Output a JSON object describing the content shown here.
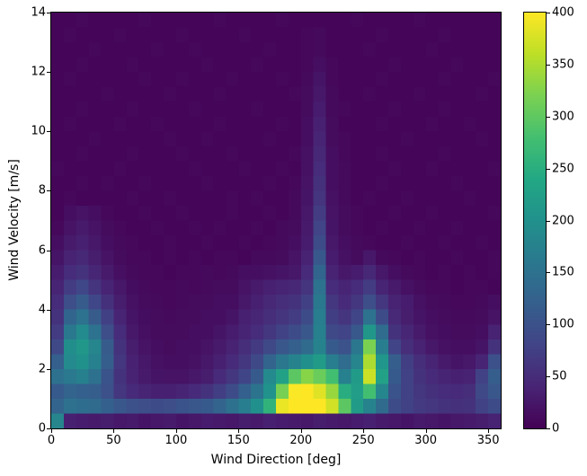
{
  "chart_data": {
    "type": "heatmap",
    "title": "",
    "xlabel": "Wind Direction [deg]",
    "ylabel": "Wind Velocity [m/s]",
    "xlim": [
      0,
      360
    ],
    "ylim": [
      0,
      14
    ],
    "x_ticks": [
      0,
      50,
      100,
      150,
      200,
      250,
      300,
      350
    ],
    "y_ticks": [
      0,
      2,
      4,
      6,
      8,
      10,
      12,
      14
    ],
    "x_bin_size_deg": 10,
    "y_bin_size_ms": 0.5,
    "grid": false,
    "colorbar": {
      "min": 0,
      "max": 400,
      "ticks": [
        0,
        50,
        100,
        150,
        200,
        250,
        300,
        350,
        400
      ],
      "position": "right"
    },
    "colormap": {
      "name": "viridis",
      "stops": [
        {
          "t": 0.0,
          "color": "#440154"
        },
        {
          "t": 0.1,
          "color": "#482475"
        },
        {
          "t": 0.2,
          "color": "#414487"
        },
        {
          "t": 0.3,
          "color": "#355f8d"
        },
        {
          "t": 0.4,
          "color": "#2a788e"
        },
        {
          "t": 0.5,
          "color": "#21918c"
        },
        {
          "t": 0.6,
          "color": "#22a884"
        },
        {
          "t": 0.7,
          "color": "#44bf70"
        },
        {
          "t": 0.8,
          "color": "#7ad151"
        },
        {
          "t": 0.9,
          "color": "#bddf26"
        },
        {
          "t": 1.0,
          "color": "#fde725"
        }
      ]
    },
    "values_rows_topdown_v14_to_v0": [
      [
        5,
        5,
        8,
        5,
        5,
        5,
        5,
        8,
        5,
        5,
        5,
        5,
        5,
        8,
        5,
        5,
        5,
        5,
        8,
        5,
        5,
        5,
        5,
        5,
        8,
        5,
        5,
        5,
        5,
        8,
        5,
        5,
        5,
        5,
        5,
        5
      ],
      [
        5,
        8,
        5,
        5,
        5,
        8,
        5,
        5,
        5,
        5,
        8,
        5,
        5,
        5,
        5,
        8,
        5,
        5,
        5,
        5,
        8,
        10,
        5,
        5,
        5,
        5,
        8,
        5,
        5,
        5,
        5,
        8,
        5,
        5,
        5,
        5
      ],
      [
        5,
        5,
        5,
        8,
        5,
        5,
        5,
        5,
        8,
        5,
        5,
        8,
        5,
        5,
        5,
        5,
        5,
        8,
        5,
        5,
        8,
        10,
        5,
        5,
        5,
        8,
        5,
        5,
        5,
        5,
        8,
        5,
        5,
        5,
        5,
        5
      ],
      [
        5,
        5,
        8,
        5,
        5,
        5,
        8,
        5,
        5,
        5,
        5,
        5,
        8,
        5,
        5,
        5,
        8,
        5,
        5,
        5,
        8,
        15,
        8,
        5,
        5,
        5,
        5,
        8,
        5,
        5,
        5,
        5,
        8,
        5,
        5,
        5
      ],
      [
        5,
        8,
        5,
        5,
        5,
        5,
        5,
        8,
        5,
        5,
        8,
        5,
        5,
        5,
        8,
        5,
        5,
        5,
        8,
        5,
        10,
        22,
        8,
        5,
        5,
        5,
        8,
        5,
        5,
        5,
        5,
        8,
        5,
        5,
        5,
        8
      ],
      [
        5,
        5,
        5,
        5,
        8,
        5,
        5,
        5,
        5,
        8,
        5,
        5,
        5,
        8,
        5,
        5,
        5,
        5,
        5,
        8,
        12,
        25,
        10,
        5,
        5,
        8,
        5,
        5,
        5,
        8,
        5,
        5,
        5,
        5,
        8,
        5
      ],
      [
        5,
        5,
        8,
        5,
        5,
        5,
        8,
        5,
        5,
        5,
        5,
        8,
        5,
        5,
        5,
        5,
        8,
        5,
        5,
        5,
        12,
        30,
        10,
        8,
        5,
        5,
        5,
        8,
        5,
        5,
        5,
        8,
        5,
        5,
        5,
        5
      ],
      [
        5,
        8,
        5,
        5,
        5,
        8,
        5,
        5,
        8,
        5,
        5,
        5,
        5,
        8,
        5,
        5,
        5,
        5,
        8,
        5,
        15,
        35,
        12,
        5,
        5,
        5,
        8,
        5,
        5,
        5,
        8,
        5,
        5,
        8,
        5,
        5
      ],
      [
        5,
        5,
        5,
        8,
        5,
        5,
        5,
        5,
        5,
        8,
        5,
        5,
        8,
        5,
        5,
        5,
        5,
        8,
        5,
        5,
        15,
        40,
        12,
        8,
        5,
        5,
        5,
        5,
        8,
        5,
        5,
        5,
        5,
        5,
        8,
        5
      ],
      [
        5,
        5,
        8,
        5,
        5,
        5,
        8,
        5,
        5,
        5,
        8,
        5,
        5,
        5,
        8,
        5,
        5,
        5,
        5,
        8,
        18,
        45,
        15,
        8,
        5,
        5,
        8,
        5,
        5,
        5,
        5,
        8,
        5,
        5,
        5,
        5
      ],
      [
        8,
        5,
        5,
        5,
        5,
        8,
        5,
        5,
        5,
        5,
        5,
        8,
        5,
        5,
        5,
        8,
        5,
        5,
        8,
        5,
        18,
        50,
        15,
        10,
        5,
        5,
        5,
        8,
        5,
        5,
        8,
        5,
        5,
        5,
        5,
        8
      ],
      [
        5,
        5,
        8,
        5,
        8,
        5,
        5,
        8,
        5,
        5,
        5,
        5,
        8,
        5,
        5,
        5,
        5,
        8,
        5,
        8,
        20,
        55,
        15,
        10,
        5,
        5,
        8,
        5,
        5,
        5,
        5,
        5,
        8,
        5,
        5,
        5
      ],
      [
        5,
        8,
        5,
        5,
        5,
        5,
        8,
        5,
        5,
        8,
        5,
        5,
        5,
        5,
        8,
        5,
        8,
        5,
        5,
        10,
        22,
        60,
        18,
        10,
        5,
        8,
        5,
        5,
        8,
        5,
        5,
        5,
        5,
        8,
        5,
        5
      ],
      [
        5,
        15,
        20,
        15,
        8,
        5,
        5,
        8,
        5,
        5,
        8,
        5,
        5,
        5,
        8,
        5,
        5,
        8,
        5,
        10,
        25,
        70,
        20,
        12,
        8,
        5,
        5,
        8,
        5,
        5,
        8,
        5,
        5,
        5,
        5,
        8
      ],
      [
        8,
        20,
        28,
        20,
        12,
        8,
        5,
        5,
        8,
        5,
        5,
        8,
        5,
        8,
        5,
        5,
        8,
        5,
        10,
        12,
        28,
        80,
        22,
        12,
        8,
        5,
        8,
        5,
        5,
        8,
        5,
        5,
        8,
        5,
        5,
        5
      ],
      [
        15,
        28,
        35,
        25,
        15,
        10,
        8,
        5,
        5,
        8,
        5,
        5,
        8,
        5,
        5,
        8,
        5,
        8,
        10,
        15,
        30,
        90,
        25,
        15,
        10,
        8,
        5,
        5,
        8,
        5,
        5,
        8,
        5,
        5,
        8,
        5
      ],
      [
        22,
        38,
        45,
        32,
        20,
        12,
        8,
        8,
        5,
        8,
        5,
        8,
        5,
        8,
        8,
        5,
        10,
        10,
        12,
        20,
        38,
        110,
        30,
        18,
        12,
        25,
        10,
        8,
        5,
        8,
        5,
        5,
        8,
        5,
        5,
        8
      ],
      [
        30,
        50,
        58,
        42,
        28,
        16,
        10,
        8,
        8,
        5,
        8,
        8,
        10,
        8,
        10,
        15,
        15,
        18,
        22,
        25,
        48,
        130,
        38,
        25,
        30,
        45,
        25,
        15,
        10,
        8,
        5,
        8,
        5,
        8,
        5,
        8
      ],
      [
        40,
        70,
        85,
        60,
        40,
        25,
        14,
        10,
        8,
        8,
        10,
        8,
        10,
        12,
        12,
        20,
        28,
        35,
        40,
        45,
        60,
        150,
        50,
        40,
        50,
        70,
        40,
        28,
        18,
        12,
        8,
        8,
        5,
        8,
        8,
        5
      ],
      [
        50,
        95,
        115,
        85,
        55,
        32,
        18,
        12,
        10,
        8,
        10,
        12,
        12,
        15,
        15,
        25,
        35,
        45,
        52,
        58,
        75,
        160,
        62,
        48,
        62,
        95,
        62,
        38,
        30,
        18,
        12,
        10,
        8,
        8,
        10,
        15
      ],
      [
        58,
        130,
        150,
        115,
        75,
        40,
        22,
        14,
        12,
        10,
        12,
        12,
        15,
        15,
        22,
        35,
        42,
        52,
        60,
        70,
        90,
        168,
        72,
        60,
        82,
        150,
        92,
        46,
        32,
        22,
        15,
        12,
        10,
        10,
        12,
        20
      ],
      [
        70,
        160,
        190,
        150,
        95,
        50,
        26,
        16,
        12,
        12,
        12,
        15,
        15,
        22,
        30,
        40,
        50,
        62,
        78,
        90,
        108,
        172,
        88,
        80,
        110,
        210,
        140,
        58,
        42,
        28,
        18,
        14,
        12,
        12,
        15,
        38
      ],
      [
        88,
        195,
        210,
        180,
        115,
        58,
        32,
        20,
        15,
        12,
        15,
        15,
        20,
        28,
        38,
        52,
        68,
        88,
        108,
        120,
        138,
        178,
        112,
        100,
        158,
        320,
        170,
        80,
        52,
        38,
        25,
        18,
        15,
        15,
        22,
        58
      ],
      [
        120,
        188,
        200,
        172,
        118,
        62,
        36,
        25,
        18,
        15,
        15,
        18,
        25,
        35,
        48,
        62,
        88,
        128,
        158,
        178,
        198,
        218,
        168,
        140,
        180,
        350,
        208,
        118,
        72,
        52,
        40,
        28,
        22,
        25,
        40,
        98
      ],
      [
        148,
        162,
        172,
        148,
        102,
        58,
        38,
        28,
        22,
        20,
        20,
        25,
        32,
        48,
        62,
        82,
        112,
        188,
        228,
        298,
        328,
        308,
        278,
        172,
        218,
        368,
        228,
        112,
        78,
        58,
        48,
        40,
        35,
        38,
        78,
        118
      ],
      [
        112,
        128,
        122,
        118,
        98,
        62,
        48,
        40,
        35,
        35,
        40,
        48,
        58,
        72,
        92,
        122,
        152,
        202,
        318,
        398,
        400,
        382,
        338,
        248,
        222,
        278,
        182,
        102,
        78,
        62,
        55,
        50,
        48,
        52,
        88,
        108
      ],
      [
        128,
        148,
        142,
        138,
        122,
        108,
        98,
        95,
        92,
        95,
        102,
        108,
        112,
        128,
        148,
        168,
        198,
        258,
        388,
        400,
        400,
        400,
        372,
        298,
        218,
        178,
        138,
        92,
        78,
        68,
        62,
        58,
        55,
        58,
        78,
        92
      ],
      [
        180,
        35,
        30,
        28,
        32,
        25,
        28,
        22,
        25,
        28,
        22,
        25,
        30,
        28,
        25,
        32,
        28,
        35,
        30,
        28,
        25,
        32,
        28,
        25,
        30,
        35,
        28,
        25,
        22,
        28,
        25,
        22,
        25,
        28,
        32,
        38
      ]
    ]
  }
}
